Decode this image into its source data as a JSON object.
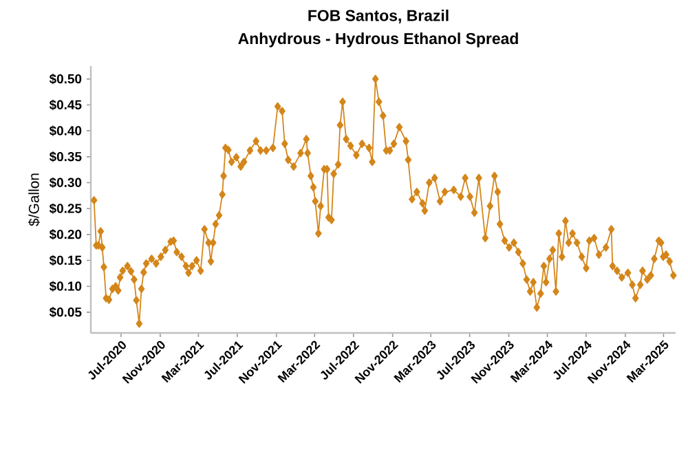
{
  "chart_data": {
    "type": "line",
    "title": "FOB Santos, Brazil",
    "subtitle": "Anhydrous - Hydrous Ethanol Spread",
    "ylabel": "$/Gallon",
    "xlim": [
      "2020-03-28",
      "2025-04-08"
    ],
    "ylim": [
      0.01,
      0.525
    ],
    "xticks": [
      {
        "value": "2020-07-01",
        "label": "Jul-2020"
      },
      {
        "value": "2020-11-01",
        "label": "Nov-2020"
      },
      {
        "value": "2021-03-01",
        "label": "Mar-2021"
      },
      {
        "value": "2021-07-01",
        "label": "Jul-2021"
      },
      {
        "value": "2021-11-01",
        "label": "Nov-2021"
      },
      {
        "value": "2022-03-01",
        "label": "Mar-2022"
      },
      {
        "value": "2022-07-01",
        "label": "Jul-2022"
      },
      {
        "value": "2022-11-01",
        "label": "Nov-2022"
      },
      {
        "value": "2023-03-01",
        "label": "Mar-2023"
      },
      {
        "value": "2023-07-01",
        "label": "Jul-2023"
      },
      {
        "value": "2023-11-01",
        "label": "Nov-2023"
      },
      {
        "value": "2024-03-01",
        "label": "Mar-2024"
      },
      {
        "value": "2024-07-01",
        "label": "Jul-2024"
      },
      {
        "value": "2024-11-01",
        "label": "Nov-2024"
      },
      {
        "value": "2025-03-01",
        "label": "Mar-2025"
      }
    ],
    "yticks": [
      {
        "value": 0.05,
        "label": "$0.05"
      },
      {
        "value": 0.1,
        "label": "$0.10"
      },
      {
        "value": 0.15,
        "label": "$0.15"
      },
      {
        "value": 0.2,
        "label": "$0.20"
      },
      {
        "value": 0.25,
        "label": "$0.25"
      },
      {
        "value": 0.3,
        "label": "$0.30"
      },
      {
        "value": 0.35,
        "label": "$0.35"
      },
      {
        "value": 0.4,
        "label": "$0.40"
      },
      {
        "value": 0.45,
        "label": "$0.45"
      },
      {
        "value": 0.5,
        "label": "$0.50"
      }
    ],
    "grid": false,
    "marker": "diamond",
    "line_style": "solid",
    "series": [
      {
        "color": "#d4861a",
        "x": [
          "2020-04-07",
          "2020-04-14",
          "2020-04-21",
          "2020-04-28",
          "2020-05-03",
          "2020-05-08",
          "2020-05-15",
          "2020-05-24",
          "2020-06-04",
          "2020-06-14",
          "2020-06-22",
          "2020-06-28",
          "2020-07-06",
          "2020-07-21",
          "2020-08-01",
          "2020-08-11",
          "2020-08-18",
          "2020-08-27",
          "2020-09-03",
          "2020-09-10",
          "2020-09-18",
          "2020-10-05",
          "2020-10-19",
          "2020-11-03",
          "2020-11-17",
          "2020-12-04",
          "2020-12-13",
          "2020-12-23",
          "2021-01-07",
          "2021-01-21",
          "2021-01-29",
          "2021-02-09",
          "2021-02-23",
          "2021-03-08",
          "2021-03-20",
          "2021-04-02",
          "2021-04-09",
          "2021-04-16",
          "2021-04-24",
          "2021-05-05",
          "2021-05-15",
          "2021-05-19",
          "2021-05-25",
          "2021-06-03",
          "2021-06-13",
          "2021-06-28",
          "2021-07-12",
          "2021-07-22",
          "2021-08-10",
          "2021-08-29",
          "2021-09-12",
          "2021-09-30",
          "2021-10-21",
          "2021-11-05",
          "2021-11-19",
          "2021-11-27",
          "2021-12-08",
          "2021-12-25",
          "2022-01-16",
          "2022-02-03",
          "2022-02-07",
          "2022-02-17",
          "2022-02-25",
          "2022-03-03",
          "2022-03-13",
          "2022-03-20",
          "2022-03-31",
          "2022-04-09",
          "2022-04-14",
          "2022-04-23",
          "2022-04-30",
          "2022-05-14",
          "2022-05-20",
          "2022-05-28",
          "2022-06-08",
          "2022-06-22",
          "2022-07-10",
          "2022-07-28",
          "2022-08-19",
          "2022-08-29",
          "2022-09-08",
          "2022-09-19",
          "2022-10-02",
          "2022-10-12",
          "2022-10-23",
          "2022-11-05",
          "2022-11-22",
          "2022-12-13",
          "2022-12-20",
          "2023-01-01",
          "2023-01-16",
          "2023-02-03",
          "2023-02-10",
          "2023-02-24",
          "2023-03-13",
          "2023-03-30",
          "2023-04-14",
          "2023-05-12",
          "2023-06-03",
          "2023-06-17",
          "2023-07-02",
          "2023-07-16",
          "2023-07-30",
          "2023-08-19",
          "2023-09-03",
          "2023-09-17",
          "2023-09-27",
          "2023-10-04",
          "2023-10-19",
          "2023-11-02",
          "2023-11-17",
          "2023-12-01",
          "2023-12-15",
          "2023-12-27",
          "2024-01-07",
          "2024-01-17",
          "2024-01-28",
          "2024-02-09",
          "2024-02-19",
          "2024-02-26",
          "2024-03-08",
          "2024-03-18",
          "2024-03-28",
          "2024-04-06",
          "2024-04-16",
          "2024-04-27",
          "2024-05-07",
          "2024-05-19",
          "2024-06-02",
          "2024-06-17",
          "2024-07-01",
          "2024-07-11",
          "2024-07-26",
          "2024-08-10",
          "2024-09-01",
          "2024-09-18",
          "2024-09-22",
          "2024-10-06",
          "2024-10-21",
          "2024-11-09",
          "2024-11-23",
          "2024-12-03",
          "2024-12-18",
          "2024-12-25",
          "2025-01-09",
          "2025-01-20",
          "2025-01-31",
          "2025-02-14",
          "2025-02-21",
          "2025-02-28",
          "2025-03-09",
          "2025-03-20",
          "2025-04-01"
        ],
        "values": [
          0.266,
          0.179,
          0.179,
          0.206,
          0.175,
          0.137,
          0.077,
          0.074,
          0.095,
          0.1,
          0.092,
          0.117,
          0.13,
          0.139,
          0.129,
          0.113,
          0.073,
          0.028,
          0.095,
          0.127,
          0.144,
          0.153,
          0.144,
          0.157,
          0.17,
          0.186,
          0.188,
          0.166,
          0.157,
          0.139,
          0.126,
          0.139,
          0.15,
          0.13,
          0.21,
          0.184,
          0.148,
          0.184,
          0.22,
          0.237,
          0.277,
          0.313,
          0.367,
          0.363,
          0.34,
          0.349,
          0.331,
          0.34,
          0.362,
          0.38,
          0.362,
          0.362,
          0.367,
          0.447,
          0.438,
          0.375,
          0.344,
          0.331,
          0.357,
          0.384,
          0.357,
          0.313,
          0.291,
          0.264,
          0.202,
          0.255,
          0.326,
          0.326,
          0.233,
          0.228,
          0.317,
          0.335,
          0.411,
          0.456,
          0.384,
          0.371,
          0.353,
          0.375,
          0.367,
          0.34,
          0.5,
          0.456,
          0.429,
          0.362,
          0.362,
          0.375,
          0.407,
          0.38,
          0.344,
          0.268,
          0.282,
          0.26,
          0.246,
          0.3,
          0.309,
          0.264,
          0.282,
          0.286,
          0.273,
          0.309,
          0.273,
          0.242,
          0.309,
          0.193,
          0.255,
          0.313,
          0.282,
          0.22,
          0.188,
          0.175,
          0.184,
          0.166,
          0.144,
          0.113,
          0.09,
          0.108,
          0.059,
          0.086,
          0.139,
          0.108,
          0.153,
          0.17,
          0.09,
          0.202,
          0.157,
          0.226,
          0.184,
          0.202,
          0.184,
          0.157,
          0.135,
          0.188,
          0.193,
          0.161,
          0.175,
          0.21,
          0.139,
          0.13,
          0.117,
          0.126,
          0.103,
          0.077,
          0.103,
          0.13,
          0.113,
          0.121,
          0.153,
          0.188,
          0.184,
          0.157,
          0.161,
          0.148,
          0.121
        ]
      }
    ]
  }
}
